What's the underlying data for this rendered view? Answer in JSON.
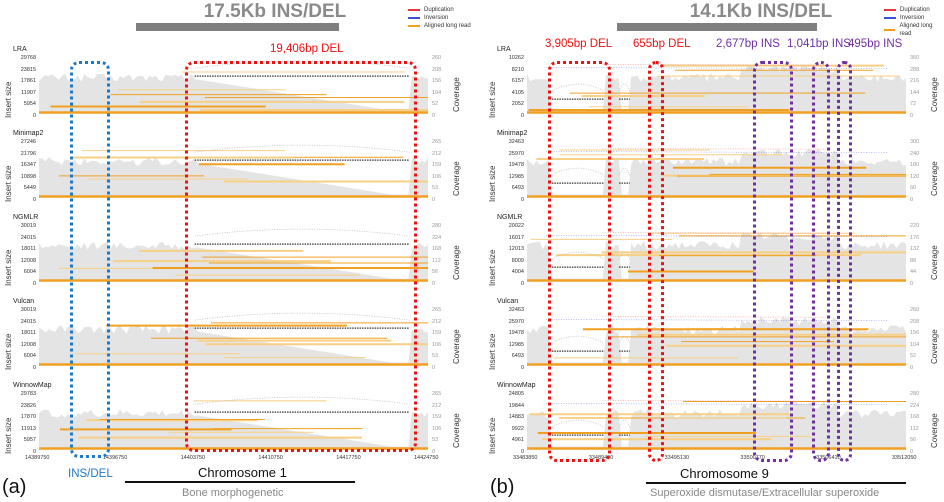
{
  "colors": {
    "coverage": "#e4e4e4",
    "aligned_read": "#f0a020",
    "aligned_read_light": "#f7cf85",
    "duplication": "#e8383d",
    "inversion": "#3a50d8",
    "del_box": "#ee1111",
    "ins_box": "#7030a0",
    "insdel_box": "#1e78c8",
    "split_arc": "#333333"
  },
  "legend": {
    "items": [
      {
        "label": "Duplication",
        "color": "#e8383d"
      },
      {
        "label": "Inversion",
        "color": "#3a50d8"
      },
      {
        "label": "Aligned long read",
        "color": "#f0a020"
      }
    ]
  },
  "axis_titles": {
    "left": "Insert size",
    "right": "Coverage"
  },
  "panels": [
    {
      "id": "a",
      "panel_label": "(a)",
      "title": "17.5Kb INS/DEL",
      "chromosome": "Chromosome 1",
      "gene": "Bone morphogenetic",
      "x_ticks": [
        "14389750",
        "14396750",
        "14403750",
        "14410750",
        "14417750",
        "14424750"
      ],
      "x_range": [
        14389750,
        14424750
      ],
      "annotations": [
        {
          "label": "19,406bp DEL",
          "type": "DEL",
          "color": "#ee1111",
          "start": 14403750,
          "end": 14423100
        },
        {
          "label": "INS/DEL",
          "type": "INS/DEL",
          "color": "#1e78c8",
          "start": 14391600,
          "end": 14395500
        }
      ],
      "tracks": [
        {
          "name": "LRA",
          "insert_ticks": [
            "29768",
            "23815",
            "17861",
            "11907",
            "5954",
            "0"
          ],
          "coverage_ticks": [
            "260",
            "208",
            "156",
            "104",
            "52",
            "0"
          ]
        },
        {
          "name": "Minimap2",
          "insert_ticks": [
            "27246",
            "21796",
            "16347",
            "10898",
            "5449",
            "0"
          ],
          "coverage_ticks": [
            "265",
            "212",
            "159",
            "106",
            "53",
            "0"
          ]
        },
        {
          "name": "NGMLR",
          "insert_ticks": [
            "30019",
            "24015",
            "18011",
            "12008",
            "6004",
            "0"
          ],
          "coverage_ticks": [
            "280",
            "224",
            "168",
            "112",
            "56",
            "0"
          ]
        },
        {
          "name": "Vulcan",
          "insert_ticks": [
            "30019",
            "24015",
            "18011",
            "12008",
            "6004",
            "0"
          ],
          "coverage_ticks": [
            "265",
            "212",
            "159",
            "106",
            "53",
            "0"
          ]
        },
        {
          "name": "WinnowMap",
          "insert_ticks": [
            "29783",
            "23826",
            "17870",
            "11913",
            "5957",
            "0"
          ],
          "coverage_ticks": [
            "265",
            "212",
            "159",
            "106",
            "53",
            "0"
          ]
        }
      ]
    },
    {
      "id": "b",
      "panel_label": "(b)",
      "title": "14.1Kb INS/DEL",
      "chromosome": "Chromosome 9",
      "gene": "Superoxide dismutase/Extracellular superoxide",
      "x_ticks": [
        "33483850",
        "33489490",
        "33495130",
        "33500770",
        "33506410",
        "33512050"
      ],
      "x_range": [
        33483850,
        33512050
      ],
      "annotations": [
        {
          "label": "3,905bp DEL",
          "type": "DEL",
          "color": "#ee1111",
          "start": 33485700,
          "end": 33489600
        },
        {
          "label": "655bp DEL",
          "type": "DEL",
          "color": "#ee1111",
          "start": 33490700,
          "end": 33491500
        },
        {
          "label": "2,677bp INS",
          "type": "INS",
          "color": "#7030a0",
          "start": 33499600,
          "end": 33502300
        },
        {
          "label": "1,041bp INS",
          "type": "INS",
          "color": "#7030a0",
          "start": 33504400,
          "end": 33505400
        },
        {
          "label": "495bp INS",
          "type": "INS",
          "color": "#7030a0",
          "start": 33506200,
          "end": 33506900
        }
      ],
      "tracks": [
        {
          "name": "LRA",
          "insert_ticks": [
            "10262",
            "8210",
            "6157",
            "4105",
            "2052",
            "0"
          ],
          "coverage_ticks": [
            "360",
            "288",
            "216",
            "144",
            "72",
            "0"
          ]
        },
        {
          "name": "Minimap2",
          "insert_ticks": [
            "32463",
            "25970",
            "19478",
            "12985",
            "6493",
            "0"
          ],
          "coverage_ticks": [
            "300",
            "240",
            "180",
            "120",
            "60",
            "0"
          ]
        },
        {
          "name": "NGMLR",
          "insert_ticks": [
            "20022",
            "16017",
            "12013",
            "8009",
            "4004",
            "0"
          ],
          "coverage_ticks": [
            "220",
            "176",
            "132",
            "88",
            "44",
            "0"
          ]
        },
        {
          "name": "Vulcan",
          "insert_ticks": [
            "32463",
            "25970",
            "19478",
            "12985",
            "6493",
            "0"
          ],
          "coverage_ticks": [
            "260",
            "208",
            "156",
            "104",
            "52",
            "0"
          ]
        },
        {
          "name": "WinnowMap",
          "insert_ticks": [
            "24805",
            "19844",
            "14883",
            "9922",
            "4961",
            "0"
          ],
          "coverage_ticks": [
            "280",
            "224",
            "168",
            "112",
            "56",
            "0"
          ]
        }
      ]
    }
  ]
}
